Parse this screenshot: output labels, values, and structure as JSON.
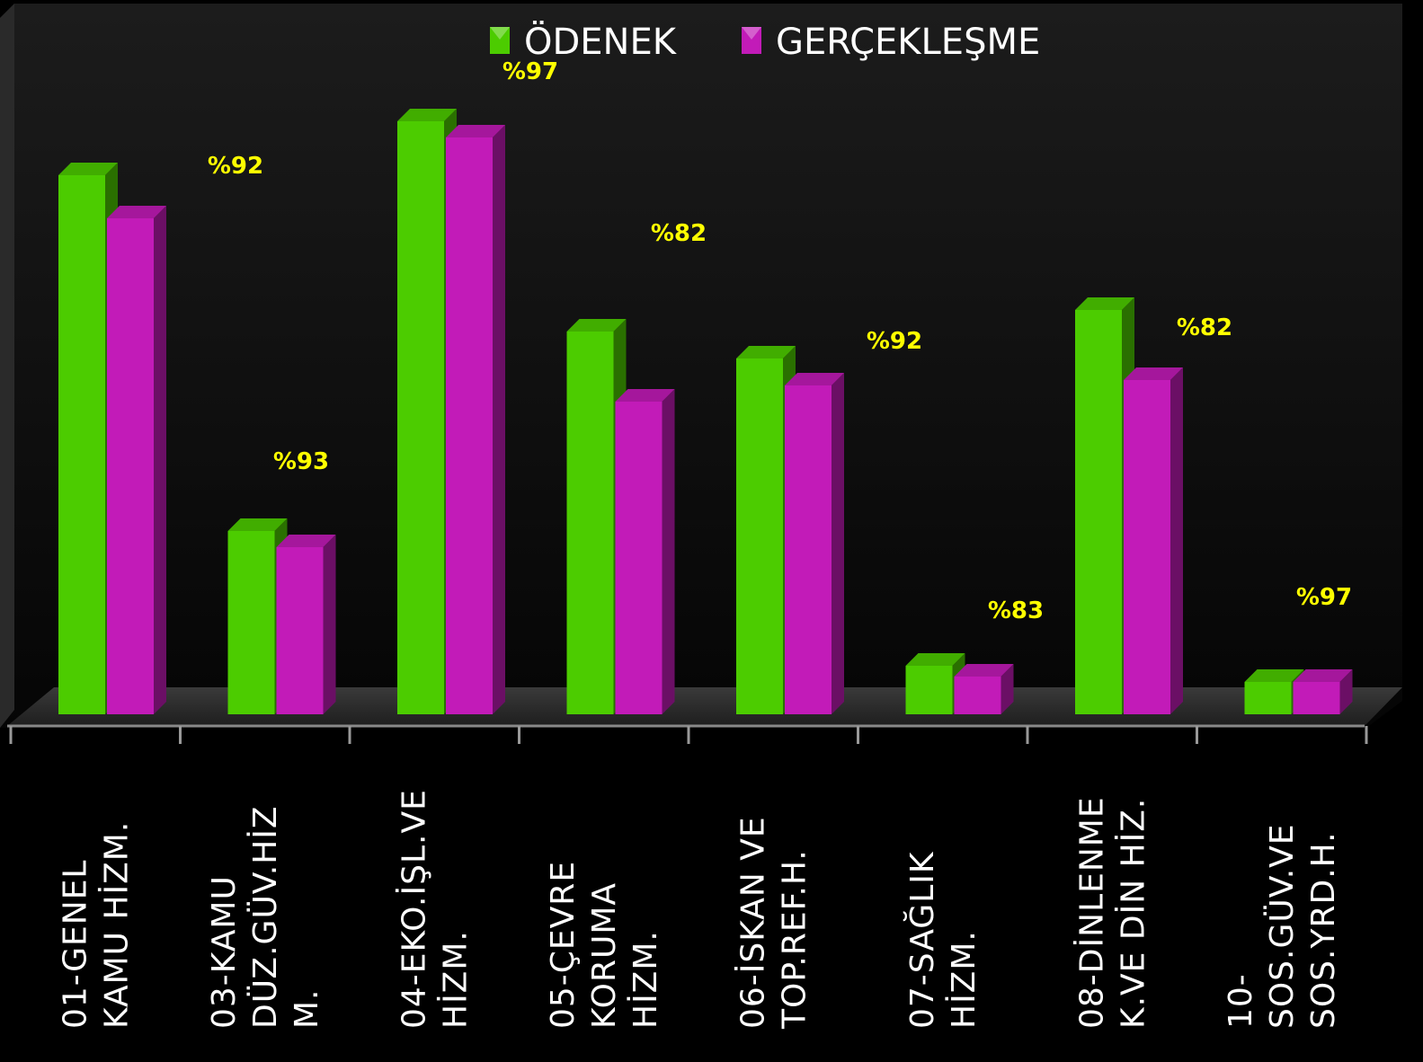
{
  "colors": {
    "background": "#000000",
    "plot_background": "#0b0b0b",
    "odenek": "#4ccc00",
    "gerceklesme": "#c21bb8",
    "pct_label": "#ffff00",
    "text": "#ffffff"
  },
  "legend": [
    {
      "name": "ÖDENEK",
      "color": "#4ccc00"
    },
    {
      "name": "GERÇEKLEŞME",
      "color": "#c21bb8"
    }
  ],
  "chart_data": {
    "type": "bar",
    "style": "3d-clustered-column",
    "legend_position": "top",
    "grid": false,
    "categories": [
      [
        "01-GENEL",
        "KAMU HİZM."
      ],
      [
        "03-KAMU",
        "DÜZ.GÜV.HİZ",
        "M."
      ],
      [
        "04-EKO.İŞL.VE",
        "HİZM."
      ],
      [
        "05-ÇEVRE",
        "KORUMA",
        "HİZM."
      ],
      [
        "06-İSKAN VE",
        "TOP.REF.H."
      ],
      [
        "07-SAĞLIK",
        "HİZM."
      ],
      [
        "08-DİNLENME",
        "K.VE DİN HİZ."
      ],
      [
        "10-",
        "SOS.GÜV.VE",
        "SOS.YRD.H."
      ]
    ],
    "series": [
      {
        "name": "ÖDENEK",
        "values": [
          100,
          34,
          110,
          71,
          66,
          9,
          75,
          6
        ]
      },
      {
        "name": "GERÇEKLEŞME",
        "values": [
          92,
          31,
          107,
          58,
          61,
          7,
          62,
          6
        ]
      }
    ],
    "annotations": [
      "%92",
      "%93",
      "%97",
      "%82",
      "%92",
      "%83",
      "%82",
      "%97"
    ],
    "ylim": [
      0,
      120
    ]
  }
}
